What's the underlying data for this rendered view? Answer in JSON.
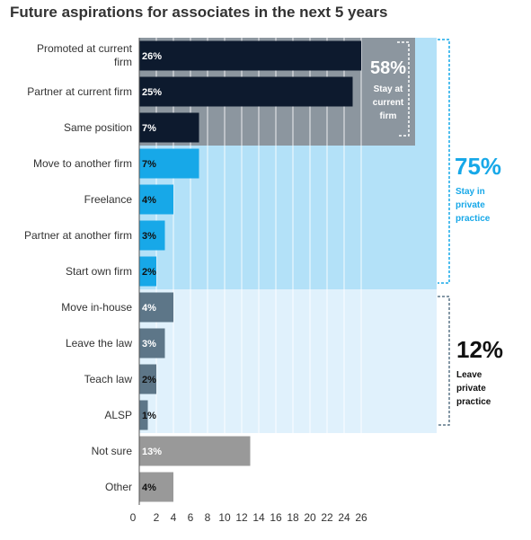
{
  "chart_data": {
    "type": "bar",
    "orientation": "horizontal",
    "title": "Future aspirations for associates in the next 5 years",
    "xlabel": "",
    "ylabel": "",
    "xlim": [
      0,
      26
    ],
    "x_ticks": [
      0,
      2,
      4,
      6,
      8,
      10,
      12,
      14,
      16,
      18,
      20,
      22,
      24,
      26
    ],
    "grid": "vertical",
    "categories": [
      "Promoted at current firm",
      "Partner at current firm",
      "Same position",
      "Move to another firm",
      "Freelance",
      "Partner at another firm",
      "Start own firm",
      "Move in-house",
      "Leave the law",
      "Teach law",
      "ALSP",
      "Not sure",
      "Other"
    ],
    "values": [
      26,
      25,
      7,
      7,
      4,
      3,
      2,
      4,
      3,
      2,
      1,
      13,
      4
    ],
    "value_labels": [
      "26%",
      "25%",
      "7%",
      "7%",
      "4%",
      "3%",
      "2%",
      "4%",
      "3%",
      "2%",
      "1%",
      "13%",
      "4%"
    ],
    "bar_colors": [
      "#0d1a2e",
      "#0d1a2e",
      "#0d1a2e",
      "#17a8e8",
      "#17a8e8",
      "#17a8e8",
      "#17a8e8",
      "#5d7688",
      "#5d7688",
      "#5d7688",
      "#5d7688",
      "#999999",
      "#999999"
    ],
    "label_colors": [
      "#ffffff",
      "#ffffff",
      "#ffffff",
      "#111111",
      "#111111",
      "#111111",
      "#111111",
      "#ffffff",
      "#ffffff",
      "#111111",
      "#111111",
      "#ffffff",
      "#111111"
    ],
    "groups": [
      {
        "value": "58%",
        "label": [
          "Stay at",
          "current",
          "firm"
        ],
        "color": "#8c969f",
        "text_color": "#ffffff",
        "first": 0,
        "last": 2
      },
      {
        "value": "75%",
        "label": [
          "Stay in",
          "private",
          "practice"
        ],
        "color": "#b3e1f8",
        "text_color": "#17a8e8",
        "first": 0,
        "last": 6
      },
      {
        "value": "12%",
        "label": [
          "Leave",
          "private",
          "practice"
        ],
        "color": "#e0f1fc",
        "text_color": "#111111",
        "first": 7,
        "last": 10
      }
    ]
  }
}
